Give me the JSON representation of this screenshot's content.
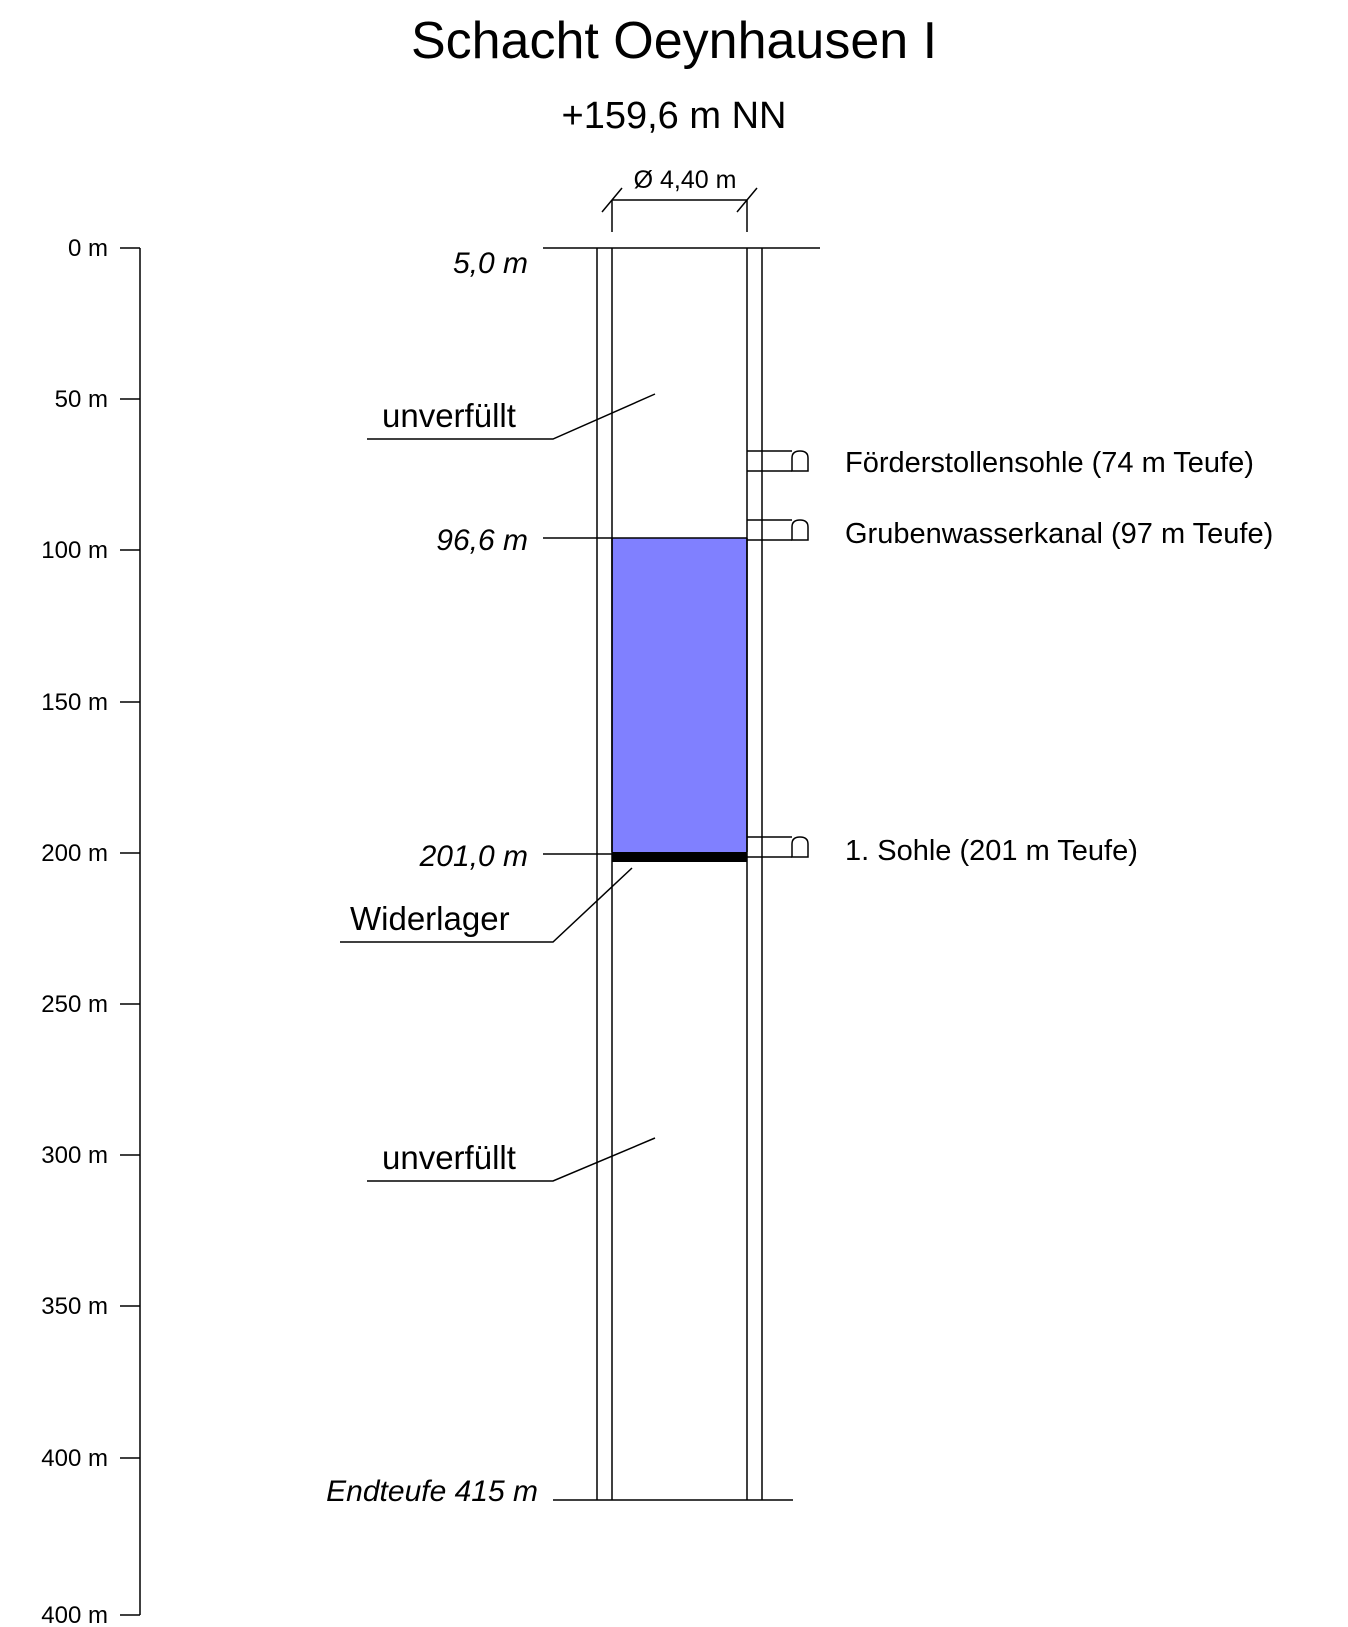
{
  "title": "Schacht Oeynhausen I",
  "elevation": "+159,6 m NN",
  "diameter": "Ø 4,40 m",
  "scale": {
    "labels": [
      "0 m",
      "50 m",
      "100 m",
      "150 m",
      "200 m",
      "250 m",
      "300 m",
      "350 m",
      "400 m"
    ],
    "bottom_label": "400 m"
  },
  "depth_marks": {
    "top": "5,0 m",
    "fill_top": "96,6 m",
    "fill_bottom": "201,0 m",
    "end": "Endteufe 415 m"
  },
  "sections": {
    "upper": "unverfüllt",
    "lower": "unverfüllt",
    "abutment": "Widerlager"
  },
  "fill": {
    "from_m": 96.6,
    "to_m": 201.0,
    "color": "#8080ff"
  },
  "abutment_color": "#000000",
  "galleries": [
    {
      "label": "Förderstollensohle (74 m Teufe)",
      "depth_m": 74
    },
    {
      "label": "Grubenwasserkanal (97 m Teufe)",
      "depth_m": 97
    },
    {
      "label": "1. Sohle (201 m Teufe)",
      "depth_m": 201
    }
  ]
}
